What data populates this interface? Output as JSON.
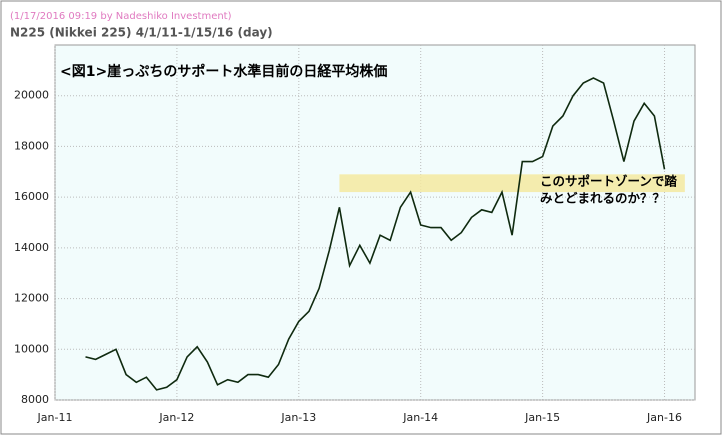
{
  "header": {
    "timestamp": "(1/17/2016 09:19 by Nadeshiko Investment)",
    "subtitle": "N225 (Nikkei 225)  4/1/11-1/15/16 (day)"
  },
  "chart_data": {
    "type": "line",
    "title": "<図1>崖っぷちのサポート水準目前の日経平均株価",
    "annotation": [
      "このサポートゾーンで踏",
      "みとどまれるのか？？"
    ],
    "x": [
      "2011-04",
      "2011-05",
      "2011-06",
      "2011-07",
      "2011-08",
      "2011-09",
      "2011-10",
      "2011-11",
      "2011-12",
      "2012-01",
      "2012-02",
      "2012-03",
      "2012-04",
      "2012-05",
      "2012-06",
      "2012-07",
      "2012-08",
      "2012-09",
      "2012-10",
      "2012-11",
      "2012-12",
      "2013-01",
      "2013-02",
      "2013-03",
      "2013-04",
      "2013-05",
      "2013-06",
      "2013-07",
      "2013-08",
      "2013-09",
      "2013-10",
      "2013-11",
      "2013-12",
      "2014-01",
      "2014-02",
      "2014-03",
      "2014-04",
      "2014-05",
      "2014-06",
      "2014-07",
      "2014-08",
      "2014-09",
      "2014-10",
      "2014-11",
      "2014-12",
      "2015-01",
      "2015-02",
      "2015-03",
      "2015-04",
      "2015-05",
      "2015-06",
      "2015-07",
      "2015-08",
      "2015-09",
      "2015-10",
      "2015-11",
      "2015-12",
      "2016-01"
    ],
    "series": [
      {
        "name": "N225",
        "color": "#0f2a0f",
        "values": [
          9700,
          9600,
          9800,
          10000,
          9000,
          8700,
          8900,
          8400,
          8500,
          8800,
          9700,
          10100,
          9500,
          8600,
          8800,
          8700,
          9000,
          9000,
          8900,
          9400,
          10400,
          11100,
          11500,
          12400,
          13900,
          15600,
          13300,
          14100,
          13400,
          14500,
          14300,
          15600,
          16200,
          14900,
          14800,
          14800,
          14300,
          14600,
          15200,
          15500,
          15400,
          16200,
          14500,
          17400,
          17400,
          17600,
          18800,
          19200,
          20000,
          20500,
          20700,
          20500,
          19000,
          17400,
          19000,
          19700,
          19200,
          17100
        ]
      }
    ],
    "band": {
      "x": [
        "2013-05",
        "2016-03"
      ],
      "y": [
        16200,
        16900
      ],
      "color": "#f5e9a0"
    },
    "xlim": [
      "2011-01",
      "2016-04"
    ],
    "xticks": [
      {
        "value": "2011-01",
        "label": "Jan-11"
      },
      {
        "value": "2012-01",
        "label": "Jan-12"
      },
      {
        "value": "2013-01",
        "label": "Jan-13"
      },
      {
        "value": "2014-01",
        "label": "Jan-14"
      },
      {
        "value": "2015-01",
        "label": "Jan-15"
      },
      {
        "value": "2016-01",
        "label": "Jan-16"
      }
    ],
    "ylim": [
      8000,
      22000
    ],
    "yticks": [
      8000,
      10000,
      12000,
      14000,
      16000,
      18000,
      20000
    ],
    "grid": true
  }
}
